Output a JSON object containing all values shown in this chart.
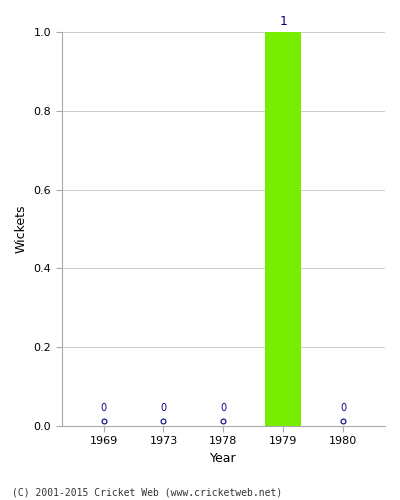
{
  "years": [
    "1969",
    "1973",
    "1978",
    "1979",
    "1980"
  ],
  "wickets": [
    0,
    0,
    0,
    1,
    0
  ],
  "bar_color": "#77ee00",
  "zero_color": "#000080",
  "label_color": "#000080",
  "xlabel": "Year",
  "ylabel": "Wickets",
  "ylim": [
    0,
    1.0
  ],
  "yticks": [
    0.0,
    0.2,
    0.4,
    0.6,
    0.8,
    1.0
  ],
  "footnote": "(C) 2001-2015 Cricket Web (www.cricketweb.net)",
  "background_color": "#ffffff",
  "bar_width": 0.6
}
